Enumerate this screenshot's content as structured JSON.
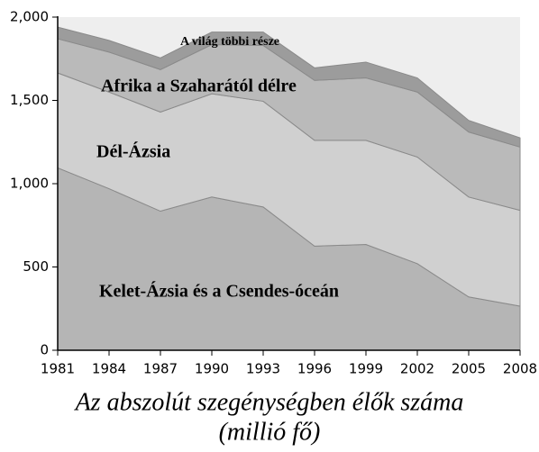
{
  "chart_data": {
    "type": "stacked_area",
    "title": "Az abszolút szegénységben élők száma",
    "subtitle": "(millió fő)",
    "x": [
      1981,
      1984,
      1987,
      1990,
      1993,
      1996,
      1999,
      2002,
      2005,
      2008
    ],
    "series": [
      {
        "name": "Kelet-Ázsia és a Csendes-óceán",
        "color": "#b5b5b5",
        "values": [
          1095,
          970,
          835,
          920,
          860,
          625,
          635,
          520,
          320,
          265
        ]
      },
      {
        "name": "Dél-Ázsia",
        "color": "#d0d0d0",
        "values": [
          570,
          580,
          595,
          620,
          635,
          635,
          625,
          640,
          600,
          575
        ]
      },
      {
        "name": "Afrika a Szaharától délre",
        "color": "#bababa",
        "values": [
          205,
          240,
          255,
          295,
          335,
          360,
          375,
          390,
          390,
          380
        ]
      },
      {
        "name": "A világ többi része",
        "color": "#9c9c9c",
        "values": [
          70,
          70,
          70,
          75,
          80,
          75,
          95,
          85,
          70,
          55
        ]
      }
    ],
    "xlim": [
      1981,
      2008
    ],
    "xticks": [
      1981,
      1984,
      1987,
      1990,
      1993,
      1996,
      1999,
      2002,
      2005,
      2008
    ],
    "ylim": [
      0,
      2000
    ],
    "yticks": [
      0,
      500,
      {
        "value": 1000,
        "label": "1,000"
      },
      {
        "value": 1500,
        "label": "1,500"
      },
      {
        "value": 2000,
        "label": "2,000"
      }
    ],
    "plot_background": "#eeeeee"
  }
}
